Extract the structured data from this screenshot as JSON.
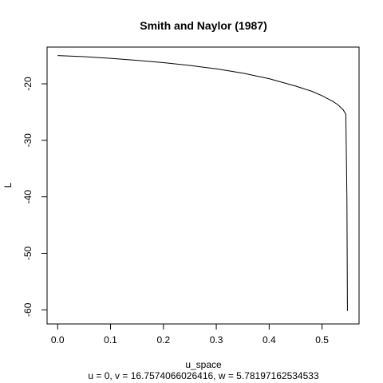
{
  "chart_data": {
    "type": "line",
    "title": "Smith and Naylor (1987)",
    "xlabel": "u_space",
    "ylabel": "L",
    "subtitle": "u = 0, v = 16.7574066026416, w = 5.78197162534533",
    "xlim": [
      -0.02,
      0.57
    ],
    "ylim": [
      -62.5,
      -13.5
    ],
    "xticks": [
      0.0,
      0.1,
      0.2,
      0.3,
      0.4,
      0.5
    ],
    "xtick_labels": [
      "0.0",
      "0.1",
      "0.2",
      "0.3",
      "0.4",
      "0.5"
    ],
    "yticks": [
      -60,
      -50,
      -40,
      -30,
      -20
    ],
    "ytick_labels": [
      "-60",
      "-50",
      "-40",
      "-30",
      "-20"
    ],
    "grid": false,
    "series": [
      {
        "name": "L",
        "color": "#000000",
        "x": [
          0.0,
          0.05,
          0.1,
          0.15,
          0.2,
          0.25,
          0.3,
          0.35,
          0.4,
          0.45,
          0.48,
          0.5,
          0.52,
          0.53,
          0.54,
          0.545,
          0.547,
          0.548
        ],
        "y": [
          -15.0,
          -15.2,
          -15.5,
          -15.85,
          -16.25,
          -16.75,
          -17.35,
          -18.1,
          -19.1,
          -20.4,
          -21.3,
          -22.1,
          -23.1,
          -23.7,
          -24.6,
          -25.4,
          -40.0,
          -60.2
        ]
      }
    ]
  }
}
